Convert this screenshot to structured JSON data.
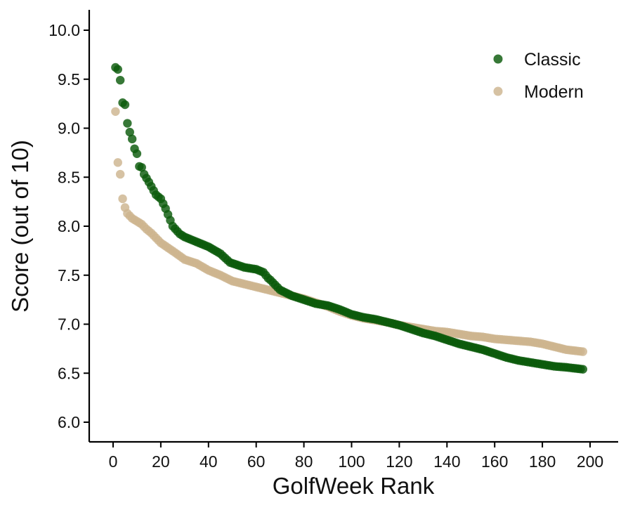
{
  "chart_data": {
    "type": "scatter",
    "title": "",
    "xlabel": "GolfWeek Rank",
    "ylabel": "Score (out of 10)",
    "xlim": [
      -5,
      210
    ],
    "ylim": [
      5.8,
      10.2
    ],
    "xticks": [
      0,
      20,
      40,
      60,
      80,
      100,
      120,
      140,
      160,
      180,
      200
    ],
    "yticks": [
      6.0,
      6.5,
      7.0,
      7.5,
      8.0,
      8.5,
      9.0,
      9.5,
      10.0
    ],
    "grid": false,
    "legend_position": "top-right",
    "series": [
      {
        "name": "Classic",
        "color": "#0b5a0b",
        "rank_range": [
          1,
          197
        ],
        "anchors": [
          [
            1,
            9.62
          ],
          [
            2,
            9.6
          ],
          [
            3,
            9.49
          ],
          [
            4,
            9.26
          ],
          [
            5,
            9.24
          ],
          [
            6,
            9.05
          ],
          [
            7,
            8.96
          ],
          [
            8,
            8.89
          ],
          [
            9,
            8.79
          ],
          [
            10,
            8.74
          ],
          [
            11,
            8.61
          ],
          [
            12,
            8.6
          ],
          [
            13,
            8.53
          ],
          [
            15,
            8.45
          ],
          [
            18,
            8.32
          ],
          [
            20,
            8.28
          ],
          [
            22,
            8.18
          ],
          [
            25,
            8.0
          ],
          [
            28,
            7.92
          ],
          [
            30,
            7.89
          ],
          [
            35,
            7.84
          ],
          [
            40,
            7.79
          ],
          [
            45,
            7.72
          ],
          [
            49,
            7.63
          ],
          [
            55,
            7.58
          ],
          [
            60,
            7.56
          ],
          [
            63,
            7.53
          ],
          [
            65,
            7.47
          ],
          [
            66,
            7.45
          ],
          [
            70,
            7.35
          ],
          [
            75,
            7.29
          ],
          [
            80,
            7.25
          ],
          [
            85,
            7.21
          ],
          [
            90,
            7.19
          ],
          [
            95,
            7.15
          ],
          [
            100,
            7.1
          ],
          [
            105,
            7.07
          ],
          [
            110,
            7.05
          ],
          [
            115,
            7.02
          ],
          [
            120,
            6.99
          ],
          [
            125,
            6.95
          ],
          [
            130,
            6.91
          ],
          [
            135,
            6.88
          ],
          [
            140,
            6.84
          ],
          [
            145,
            6.8
          ],
          [
            150,
            6.77
          ],
          [
            155,
            6.74
          ],
          [
            160,
            6.7
          ],
          [
            165,
            6.66
          ],
          [
            170,
            6.63
          ],
          [
            175,
            6.61
          ],
          [
            180,
            6.59
          ],
          [
            185,
            6.57
          ],
          [
            190,
            6.56
          ],
          [
            197,
            6.54
          ]
        ]
      },
      {
        "name": "Modern",
        "color": "#cdb48f",
        "rank_range": [
          1,
          197
        ],
        "anchors": [
          [
            1,
            9.17
          ],
          [
            2,
            8.65
          ],
          [
            3,
            8.53
          ],
          [
            4,
            8.28
          ],
          [
            5,
            8.19
          ],
          [
            6,
            8.13
          ],
          [
            8,
            8.08
          ],
          [
            10,
            8.05
          ],
          [
            12,
            8.02
          ],
          [
            14,
            7.97
          ],
          [
            16,
            7.93
          ],
          [
            18,
            7.88
          ],
          [
            20,
            7.83
          ],
          [
            23,
            7.78
          ],
          [
            26,
            7.73
          ],
          [
            30,
            7.66
          ],
          [
            35,
            7.62
          ],
          [
            40,
            7.55
          ],
          [
            45,
            7.5
          ],
          [
            50,
            7.44
          ],
          [
            55,
            7.41
          ],
          [
            60,
            7.38
          ],
          [
            65,
            7.35
          ],
          [
            70,
            7.32
          ],
          [
            75,
            7.29
          ],
          [
            80,
            7.26
          ],
          [
            85,
            7.22
          ],
          [
            90,
            7.18
          ],
          [
            95,
            7.13
          ],
          [
            100,
            7.09
          ],
          [
            105,
            7.06
          ],
          [
            110,
            7.04
          ],
          [
            115,
            7.02
          ],
          [
            120,
            6.99
          ],
          [
            125,
            6.97
          ],
          [
            130,
            6.95
          ],
          [
            135,
            6.93
          ],
          [
            140,
            6.92
          ],
          [
            145,
            6.9
          ],
          [
            150,
            6.88
          ],
          [
            155,
            6.87
          ],
          [
            160,
            6.85
          ],
          [
            165,
            6.84
          ],
          [
            170,
            6.83
          ],
          [
            175,
            6.82
          ],
          [
            180,
            6.8
          ],
          [
            185,
            6.77
          ],
          [
            190,
            6.74
          ],
          [
            197,
            6.72
          ]
        ]
      }
    ]
  }
}
